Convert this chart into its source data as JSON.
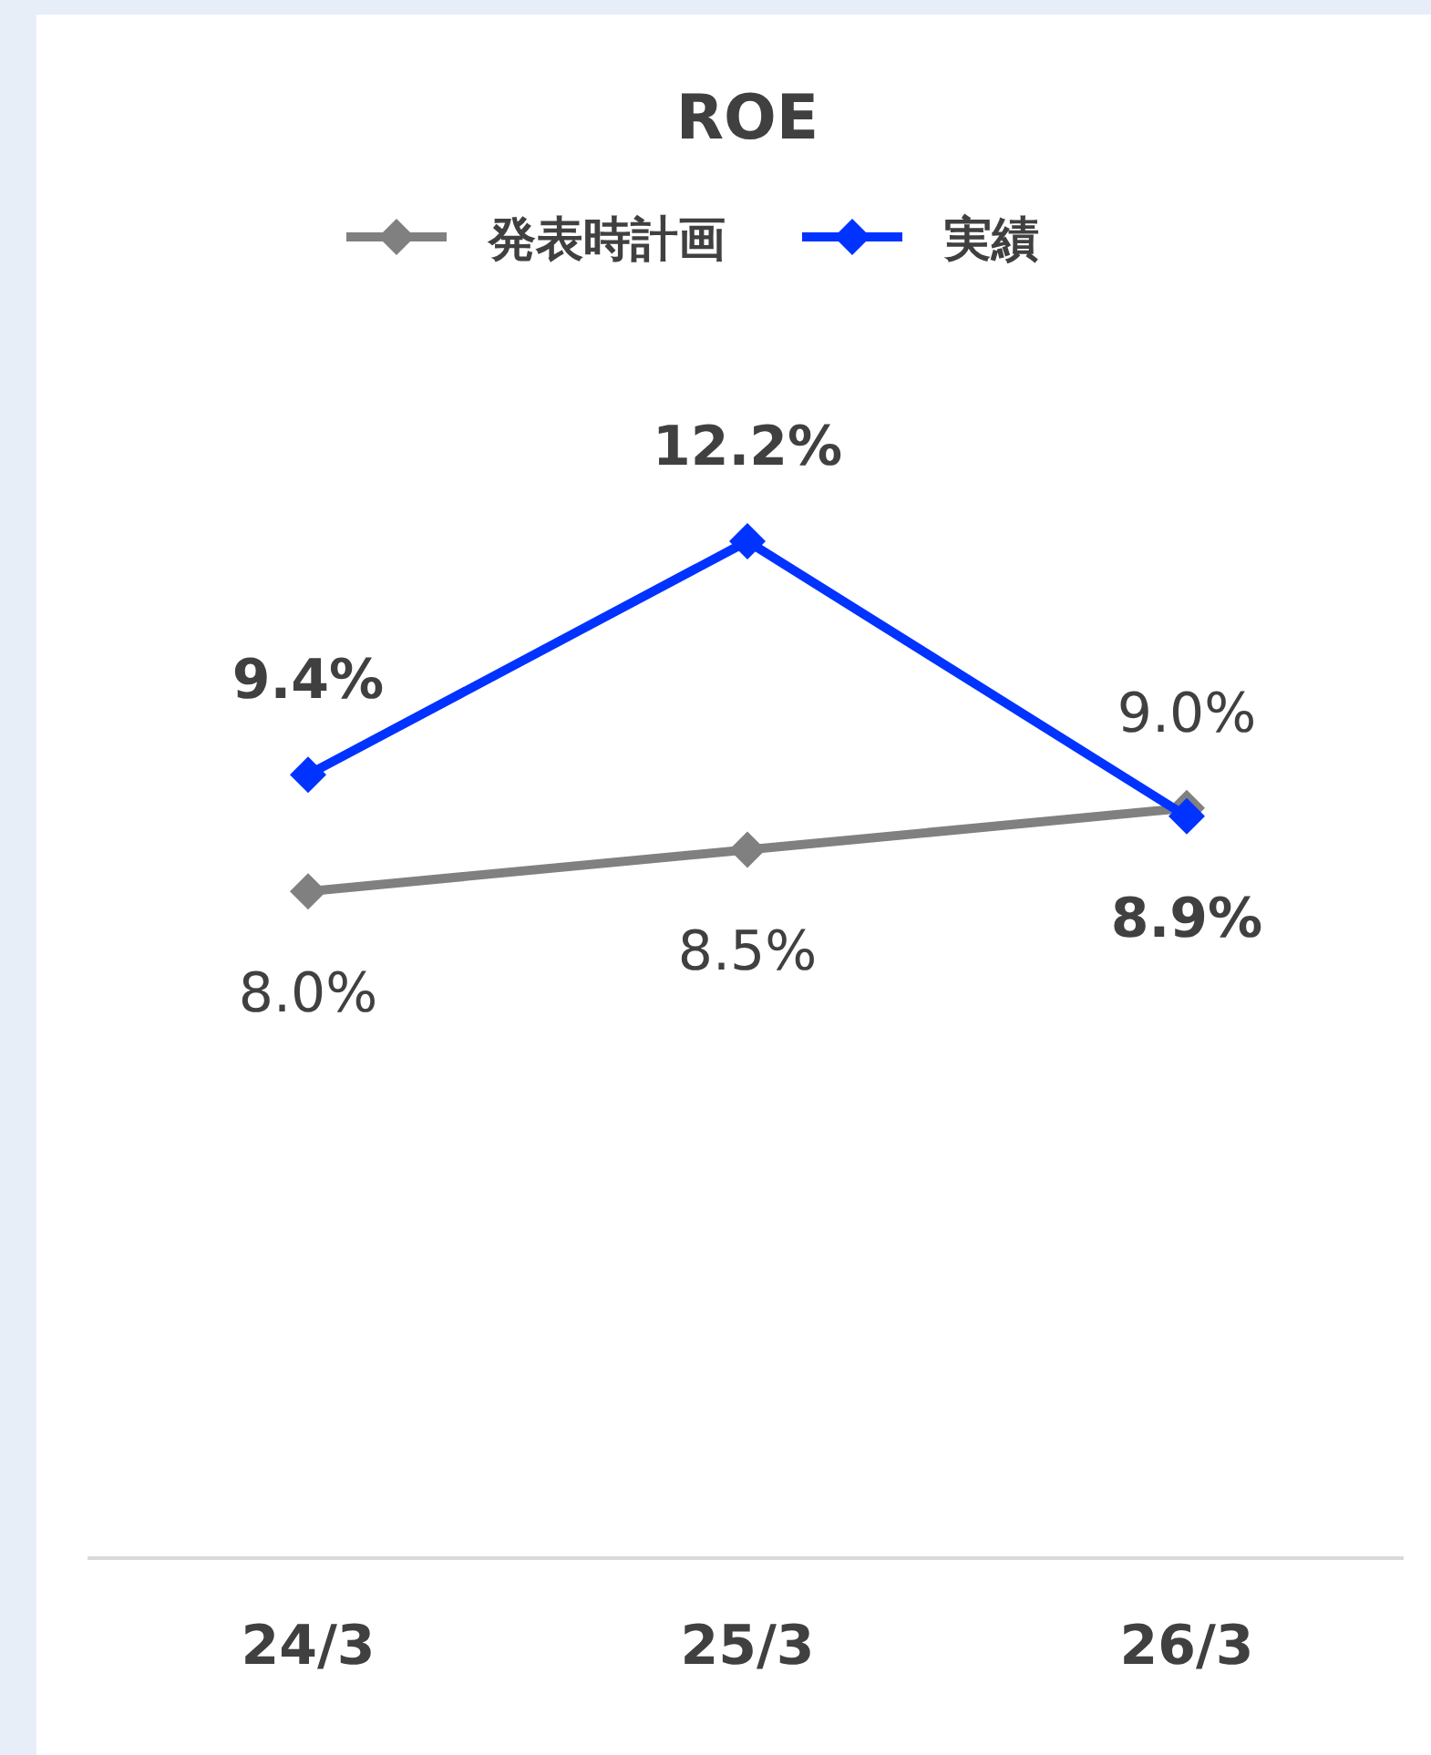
{
  "chart_data": {
    "type": "line",
    "title": "ROE",
    "categories": [
      "24/3",
      "25/3",
      "26/3"
    ],
    "series": [
      {
        "name": "発表時計画",
        "color": "#808080",
        "values": [
          8.0,
          8.5,
          9.0
        ],
        "value_labels": [
          "8.0%",
          "8.5%",
          "9.0%"
        ]
      },
      {
        "name": "実績",
        "color": "#0033ff",
        "values": [
          9.4,
          12.2,
          8.9
        ],
        "value_labels": [
          "9.4%",
          "12.2%",
          "8.9%"
        ]
      }
    ],
    "marker": "diamond",
    "line_style": "solid",
    "legend": "top"
  }
}
